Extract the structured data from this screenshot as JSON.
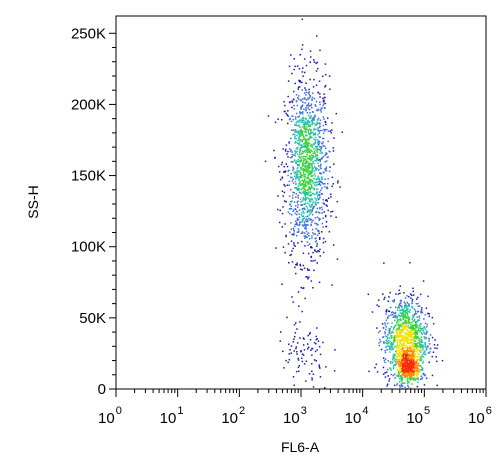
{
  "chart_data": {
    "type": "scatter",
    "title": "",
    "xlabel": "FL6-A",
    "ylabel": "SS-H",
    "x_scale": "log",
    "xlim": [
      1,
      1000000
    ],
    "ylim": [
      0,
      262144
    ],
    "grid": false,
    "x_tick_labels": [
      {
        "base": "10",
        "exp": "0"
      },
      {
        "base": "10",
        "exp": "1"
      },
      {
        "base": "10",
        "exp": "2"
      },
      {
        "base": "10",
        "exp": "3"
      },
      {
        "base": "10",
        "exp": "4"
      },
      {
        "base": "10",
        "exp": "5"
      },
      {
        "base": "10",
        "exp": "6"
      }
    ],
    "y_ticks": [
      {
        "value": 0,
        "label": "0"
      },
      {
        "value": 50000,
        "label": "50K"
      },
      {
        "value": 100000,
        "label": "100K"
      },
      {
        "value": 150000,
        "label": "150K"
      },
      {
        "value": 200000,
        "label": "200K"
      },
      {
        "value": 250000,
        "label": "250K"
      }
    ],
    "colormap": [
      "#1a1ab8",
      "#3f6fe0",
      "#22c3a3",
      "#3ad13a",
      "#f2e200",
      "#ff8a00",
      "#ff2a00"
    ],
    "populations": [
      {
        "center_log10_x": 3.1,
        "spread_log10_x": 0.18,
        "center_y": 155000,
        "spread_y": 32000,
        "count": 1400
      },
      {
        "center_log10_x": 4.7,
        "spread_log10_x": 0.18,
        "center_y": 35000,
        "spread_y": 15000,
        "count": 1100
      },
      {
        "center_log10_x": 4.75,
        "spread_log10_x": 0.09,
        "center_y": 14000,
        "spread_y": 5000,
        "count": 350
      },
      {
        "center_log10_x": 3.05,
        "spread_log10_x": 0.22,
        "center_y": 22000,
        "spread_y": 14000,
        "count": 90
      }
    ]
  }
}
